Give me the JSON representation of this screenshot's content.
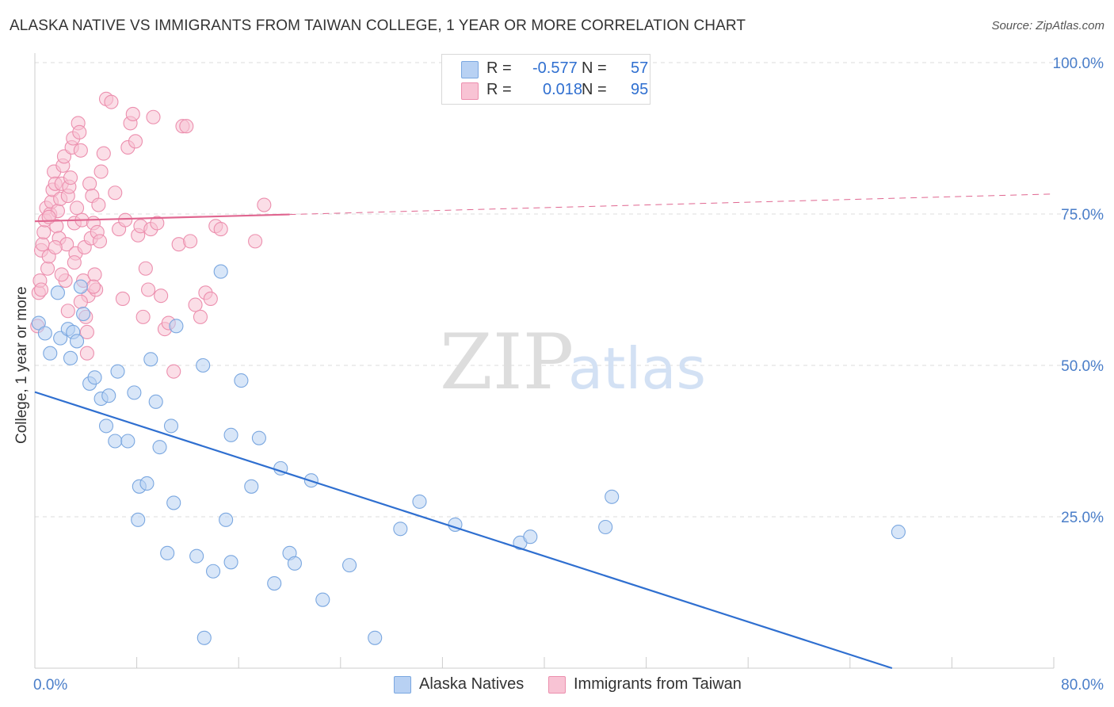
{
  "header": {
    "title": "ALASKA NATIVE VS IMMIGRANTS FROM TAIWAN COLLEGE, 1 YEAR OR MORE CORRELATION CHART",
    "source": "Source: ZipAtlas.com"
  },
  "legend": {
    "rows": [
      {
        "r_label": "R =",
        "r_value": "-0.577",
        "n_label": "N =",
        "n_value": "57",
        "color": "#b8d1f3",
        "border": "#7aa7e0"
      },
      {
        "r_label": "R =",
        "r_value": "0.018",
        "n_label": "N =",
        "n_value": "95",
        "color": "#f8c3d4",
        "border": "#ec8fae"
      }
    ]
  },
  "bottom_legend": {
    "series_a": "Alaska Natives",
    "series_b": "Immigrants from Taiwan"
  },
  "watermark": {
    "part1": "ZIP",
    "part2": "atlas"
  },
  "chart_data": {
    "type": "scatter",
    "title": "ALASKA NATIVE VS IMMIGRANTS FROM TAIWAN COLLEGE, 1 YEAR OR MORE CORRELATION CHART",
    "xlabel": "",
    "ylabel": "College, 1 year or more",
    "xlim": [
      0,
      80
    ],
    "ylim": [
      0,
      100
    ],
    "x_tick_labels": [
      "0.0%",
      "80.0%"
    ],
    "y_tick_labels": [
      "100.0%",
      "75.0%",
      "50.0%",
      "25.0%"
    ],
    "y_ticks": [
      100,
      75,
      50,
      25
    ],
    "colors": {
      "series_a": "#7aa7e0",
      "series_a_fill": "#b8d1f3",
      "series_a_line": "#2f6fd0",
      "series_b": "#ec8fae",
      "series_b_fill": "#f8c3d4",
      "series_b_line": "#e06690",
      "grid": "#dddddd",
      "axis": "#cccccc"
    },
    "series": [
      {
        "name": "Alaska Natives",
        "trend": {
          "x0": 0,
          "y0": 45.6,
          "x1": 67.3,
          "y1": 0
        },
        "points": [
          [
            0.3,
            57
          ],
          [
            0.8,
            55.3
          ],
          [
            1.2,
            52
          ],
          [
            1.8,
            62
          ],
          [
            2.0,
            54.5
          ],
          [
            2.6,
            56
          ],
          [
            2.8,
            51.2
          ],
          [
            3.0,
            55.5
          ],
          [
            3.3,
            54
          ],
          [
            3.6,
            63
          ],
          [
            3.8,
            58.5
          ],
          [
            4.3,
            47
          ],
          [
            4.7,
            48
          ],
          [
            5.2,
            44.5
          ],
          [
            5.8,
            45
          ],
          [
            5.6,
            40
          ],
          [
            6.3,
            37.5
          ],
          [
            6.5,
            49
          ],
          [
            7.3,
            37.5
          ],
          [
            7.8,
            45.5
          ],
          [
            8.2,
            30
          ],
          [
            8.8,
            30.5
          ],
          [
            8.1,
            24.5
          ],
          [
            9.1,
            51
          ],
          [
            9.5,
            44
          ],
          [
            9.8,
            36.5
          ],
          [
            10.7,
            40
          ],
          [
            10.9,
            27.3
          ],
          [
            10.4,
            19
          ],
          [
            11.1,
            56.5
          ],
          [
            12.7,
            18.5
          ],
          [
            13.2,
            50
          ],
          [
            14.0,
            16
          ],
          [
            14.6,
            65.5
          ],
          [
            15.0,
            24.5
          ],
          [
            15.4,
            38.5
          ],
          [
            15.4,
            17.5
          ],
          [
            16.2,
            47.5
          ],
          [
            17.0,
            30
          ],
          [
            17.6,
            38
          ],
          [
            18.8,
            14
          ],
          [
            19.3,
            33
          ],
          [
            20.0,
            19
          ],
          [
            20.4,
            17.3
          ],
          [
            21.7,
            31
          ],
          [
            22.6,
            11.3
          ],
          [
            24.7,
            17
          ],
          [
            26.7,
            5
          ],
          [
            28.7,
            23
          ],
          [
            30.2,
            27.5
          ],
          [
            33.0,
            23.7
          ],
          [
            38.1,
            20.7
          ],
          [
            38.9,
            21.7
          ],
          [
            44.8,
            23.3
          ],
          [
            45.3,
            28.3
          ],
          [
            67.8,
            22.5
          ],
          [
            13.3,
            5
          ]
        ]
      },
      {
        "name": "Immigrants from Taiwan",
        "trend": {
          "x0": 0,
          "y0": 73.8,
          "x1": 80,
          "y1": 78.3
        },
        "trend_solid_until_x": 20,
        "points": [
          [
            0.2,
            56.5
          ],
          [
            0.3,
            62
          ],
          [
            0.4,
            64
          ],
          [
            0.5,
            69
          ],
          [
            0.6,
            70
          ],
          [
            0.7,
            72
          ],
          [
            0.8,
            74
          ],
          [
            0.9,
            76
          ],
          [
            1.0,
            66
          ],
          [
            1.1,
            68
          ],
          [
            1.2,
            75
          ],
          [
            1.3,
            77
          ],
          [
            1.4,
            79
          ],
          [
            1.5,
            82
          ],
          [
            1.6,
            80
          ],
          [
            1.7,
            73
          ],
          [
            1.8,
            75.5
          ],
          [
            1.9,
            71
          ],
          [
            2.0,
            77.5
          ],
          [
            2.1,
            80
          ],
          [
            2.2,
            83
          ],
          [
            2.3,
            84.5
          ],
          [
            2.4,
            64
          ],
          [
            2.5,
            70
          ],
          [
            2.6,
            78
          ],
          [
            2.7,
            79.5
          ],
          [
            2.8,
            81
          ],
          [
            2.9,
            86
          ],
          [
            3.0,
            87.5
          ],
          [
            3.1,
            73.5
          ],
          [
            3.2,
            68.5
          ],
          [
            3.3,
            76
          ],
          [
            3.4,
            90
          ],
          [
            3.5,
            88.5
          ],
          [
            3.6,
            85.5
          ],
          [
            3.7,
            74
          ],
          [
            3.8,
            64
          ],
          [
            3.9,
            69.5
          ],
          [
            4.0,
            58
          ],
          [
            4.1,
            52
          ],
          [
            4.2,
            61.5
          ],
          [
            4.3,
            80
          ],
          [
            4.4,
            71
          ],
          [
            4.5,
            78
          ],
          [
            4.6,
            73.5
          ],
          [
            4.7,
            65
          ],
          [
            4.8,
            62.5
          ],
          [
            4.9,
            72
          ],
          [
            5.0,
            76.5
          ],
          [
            5.2,
            82
          ],
          [
            5.4,
            85
          ],
          [
            5.6,
            94
          ],
          [
            6.0,
            93.5
          ],
          [
            6.3,
            78.5
          ],
          [
            6.6,
            72.5
          ],
          [
            6.9,
            61
          ],
          [
            7.1,
            74
          ],
          [
            7.3,
            86
          ],
          [
            7.5,
            90
          ],
          [
            7.7,
            91.5
          ],
          [
            7.9,
            87
          ],
          [
            8.1,
            71.5
          ],
          [
            8.3,
            73
          ],
          [
            8.5,
            58
          ],
          [
            8.7,
            66
          ],
          [
            8.9,
            62.5
          ],
          [
            9.1,
            72.5
          ],
          [
            9.3,
            91
          ],
          [
            9.6,
            73.5
          ],
          [
            9.9,
            61.5
          ],
          [
            10.2,
            56
          ],
          [
            10.5,
            57
          ],
          [
            10.9,
            49
          ],
          [
            11.3,
            70
          ],
          [
            11.6,
            89.5
          ],
          [
            11.9,
            89.5
          ],
          [
            12.2,
            70.5
          ],
          [
            12.6,
            60
          ],
          [
            13.0,
            58
          ],
          [
            13.4,
            62
          ],
          [
            13.8,
            61
          ],
          [
            14.2,
            73
          ],
          [
            14.6,
            72.5
          ],
          [
            17.3,
            70.5
          ],
          [
            18.0,
            76.5
          ],
          [
            0.5,
            62.5
          ],
          [
            1.1,
            74.5
          ],
          [
            1.6,
            69.5
          ],
          [
            2.1,
            65
          ],
          [
            2.6,
            59
          ],
          [
            3.1,
            67
          ],
          [
            3.6,
            60.5
          ],
          [
            4.1,
            55.5
          ],
          [
            4.6,
            63
          ],
          [
            5.1,
            70.5
          ]
        ]
      }
    ]
  }
}
